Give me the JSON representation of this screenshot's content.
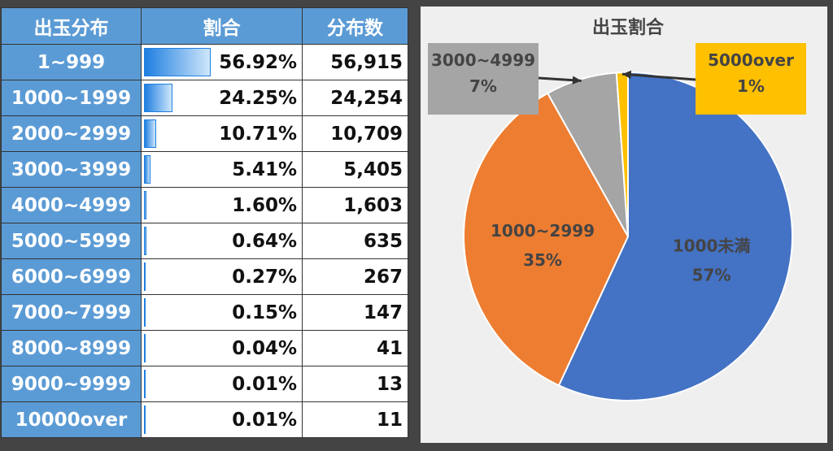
{
  "table": {
    "headers": [
      "出玉分布",
      "割合",
      "分布数"
    ],
    "rows": [
      {
        "range": "1~999",
        "pct": "56.92%",
        "pct_value": 56.92,
        "count": "56,915"
      },
      {
        "range": "1000~1999",
        "pct": "24.25%",
        "pct_value": 24.25,
        "count": "24,254"
      },
      {
        "range": "2000~2999",
        "pct": "10.71%",
        "pct_value": 10.71,
        "count": "10,709"
      },
      {
        "range": "3000~3999",
        "pct": "5.41%",
        "pct_value": 5.41,
        "count": "5,405"
      },
      {
        "range": "4000~4999",
        "pct": "1.60%",
        "pct_value": 1.6,
        "count": "1,603"
      },
      {
        "range": "5000~5999",
        "pct": "0.64%",
        "pct_value": 0.64,
        "count": "635"
      },
      {
        "range": "6000~6999",
        "pct": "0.27%",
        "pct_value": 0.27,
        "count": "267"
      },
      {
        "range": "7000~7999",
        "pct": "0.15%",
        "pct_value": 0.15,
        "count": "147"
      },
      {
        "range": "8000~8999",
        "pct": "0.04%",
        "pct_value": 0.04,
        "count": "41"
      },
      {
        "range": "9000~9999",
        "pct": "0.01%",
        "pct_value": 0.01,
        "count": "13"
      },
      {
        "range": "10000over",
        "pct": "0.01%",
        "pct_value": 0.01,
        "count": "11"
      }
    ],
    "bar_color": "#1f7fe0",
    "header_color": "#5b9bd5"
  },
  "chart_data": {
    "type": "pie",
    "title": "出玉割合",
    "slices": [
      {
        "name": "1000未満",
        "label": "57%",
        "value": 56.92,
        "color": "#4472c4"
      },
      {
        "name": "1000~2999",
        "label": "35%",
        "value": 34.96,
        "color": "#ed7d31"
      },
      {
        "name": "3000~4999",
        "label": "7%",
        "value": 7.01,
        "color": "#a5a5a5"
      },
      {
        "name": "5000over",
        "label": "1%",
        "value": 1.12,
        "color": "#ffc000"
      }
    ],
    "legend": "none"
  }
}
